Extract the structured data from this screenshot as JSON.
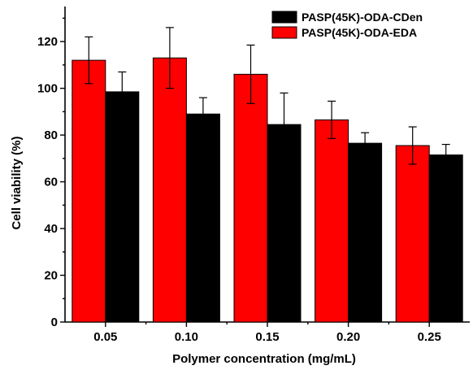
{
  "chart_data": {
    "type": "bar",
    "title": "",
    "xlabel": "Polymer concentration (mg/mL)",
    "ylabel": "Cell viability (%)",
    "ylim": [
      0,
      135
    ],
    "yticks": [
      0,
      20,
      40,
      60,
      80,
      100,
      120
    ],
    "categories": [
      "0.05",
      "0.10",
      "0.15",
      "0.20",
      "0.25"
    ],
    "series": [
      {
        "name": "PASP(45K)-ODA-EDA",
        "color": "#ff0000",
        "values": [
          112,
          113,
          106,
          86.5,
          75.5
        ],
        "errors": [
          10,
          13,
          12.5,
          8,
          8
        ]
      },
      {
        "name": "PASP(45K)-ODA-CDen",
        "color": "#000000",
        "values": [
          98.5,
          89,
          84.5,
          76.5,
          71.5
        ],
        "errors": [
          8.5,
          7,
          13.5,
          4.5,
          4.5
        ]
      }
    ],
    "legend_order": [
      "PASP(45K)-ODA-CDen",
      "PASP(45K)-ODA-EDA"
    ],
    "legend_position": "top-right",
    "grid": false
  }
}
